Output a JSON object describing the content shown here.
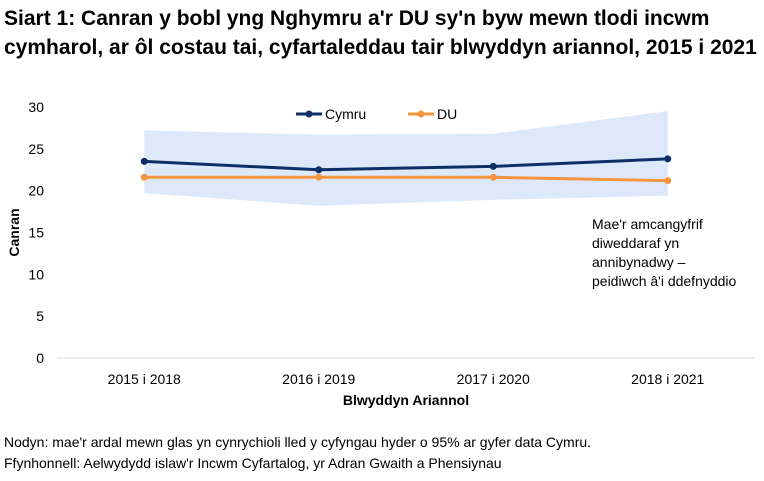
{
  "chart_data": {
    "type": "line",
    "title": "Siart 1: Canran y bobl yng Nghymru a'r DU sy'n byw mewn tlodi incwm cymharol, ar ôl costau tai, cyfartaleddau tair blwyddyn ariannol, 2015 i 2021",
    "xlabel": "Blwyddyn Ariannol",
    "ylabel": "Canran",
    "ylim": [
      0,
      30
    ],
    "yticks": [
      "0",
      "5",
      "10",
      "15",
      "20",
      "25",
      "30"
    ],
    "categories": [
      "2015 i 2018",
      "2016 i 2019",
      "2017 i 2020",
      "2018 i 2021"
    ],
    "series": [
      {
        "name": "Cymru",
        "values": [
          23.5,
          22.5,
          22.9,
          23.8
        ],
        "color": "#0d2f65"
      },
      {
        "name": "DU",
        "values": [
          21.6,
          21.6,
          21.6,
          21.2
        ],
        "color": "#f5953f"
      }
    ],
    "confidence_band": {
      "upper": [
        27.2,
        26.7,
        26.8,
        29.5
      ],
      "lower": [
        19.7,
        18.2,
        18.9,
        19.4
      ],
      "color": "#dde9fb"
    },
    "grid": false,
    "legend": "top-center",
    "annotation": [
      "Mae'r amcangyfrif",
      "diweddaraf yn",
      "annibynadwy –",
      "peidiwch â'i ddefnyddio"
    ]
  },
  "notes": {
    "note": "Nodyn: mae'r ardal mewn glas yn cynrychioli lled y cyfyngau hyder o 95% ar gyfer data Cymru.",
    "source": "Ffynhonnell: Aelwydydd islaw'r Incwm Cyfartalog, yr Adran Gwaith a Phensiynau"
  }
}
